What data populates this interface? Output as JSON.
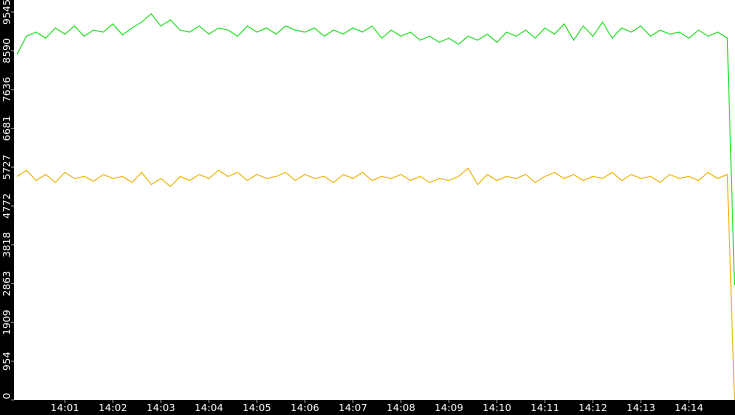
{
  "chart_data": {
    "type": "line",
    "x": [
      0,
      0.2,
      0.4,
      0.6,
      0.8,
      1,
      1.2,
      1.4,
      1.6,
      1.8,
      2,
      2.2,
      2.4,
      2.6,
      2.8,
      3,
      3.2,
      3.4,
      3.6,
      3.8,
      4,
      4.2,
      4.4,
      4.6,
      4.8,
      5,
      5.2,
      5.4,
      5.6,
      5.8,
      6,
      6.2,
      6.4,
      6.6,
      6.8,
      7,
      7.2,
      7.4,
      7.6,
      7.8,
      8,
      8.2,
      8.4,
      8.6,
      8.8,
      9,
      9.2,
      9.4,
      9.6,
      9.8,
      10,
      10.2,
      10.4,
      10.6,
      10.8,
      11,
      11.2,
      11.4,
      11.6,
      11.8,
      12,
      12.2,
      12.4,
      12.6,
      12.8,
      13,
      13.2,
      13.4,
      13.6,
      13.8,
      14,
      14.2,
      14.4,
      14.6,
      14.8,
      14.95
    ],
    "series": [
      {
        "color": "#22dd22",
        "values": [
          8500,
          8950,
          9050,
          8900,
          9150,
          9000,
          9200,
          8950,
          9100,
          9050,
          9250,
          8980,
          9150,
          9300,
          9500,
          9200,
          9350,
          9100,
          9050,
          9200,
          9000,
          9150,
          9100,
          8950,
          9200,
          9050,
          9150,
          9000,
          9200,
          9100,
          9050,
          9150,
          8950,
          9100,
          9000,
          9150,
          9050,
          9200,
          8900,
          9100,
          8950,
          9050,
          8850,
          8950,
          8800,
          8900,
          8750,
          8950,
          8850,
          9000,
          8800,
          9050,
          8950,
          9100,
          8900,
          9150,
          9000,
          9250,
          8850,
          9200,
          8950,
          9300,
          8900,
          9150,
          9050,
          9200,
          8950,
          9100,
          9000,
          9050,
          8900,
          9100,
          8950,
          9050,
          8900,
          2830
        ]
      },
      {
        "color": "#eab30c",
        "values": [
          5500,
          5650,
          5400,
          5550,
          5350,
          5600,
          5450,
          5500,
          5380,
          5550,
          5450,
          5500,
          5350,
          5600,
          5300,
          5450,
          5250,
          5500,
          5400,
          5550,
          5450,
          5650,
          5500,
          5600,
          5400,
          5550,
          5450,
          5500,
          5600,
          5400,
          5550,
          5450,
          5500,
          5350,
          5550,
          5450,
          5600,
          5400,
          5500,
          5450,
          5550,
          5400,
          5500,
          5350,
          5450,
          5400,
          5500,
          5700,
          5300,
          5550,
          5400,
          5500,
          5450,
          5550,
          5350,
          5500,
          5600,
          5450,
          5550,
          5400,
          5500,
          5450,
          5600,
          5400,
          5550,
          5450,
          5500,
          5350,
          5550,
          5450,
          5500,
          5400,
          5600,
          5450,
          5550,
          0
        ]
      }
    ],
    "xlim": [
      -0.06,
      14.96
    ],
    "xticks": [
      {
        "value": 1,
        "label": "14:01"
      },
      {
        "value": 2,
        "label": "14:02"
      },
      {
        "value": 3,
        "label": "14:03"
      },
      {
        "value": 4,
        "label": "14:04"
      },
      {
        "value": 5,
        "label": "14:05"
      },
      {
        "value": 6,
        "label": "14:06"
      },
      {
        "value": 7,
        "label": "14:07"
      },
      {
        "value": 8,
        "label": "14:08"
      },
      {
        "value": 9,
        "label": "14:09"
      },
      {
        "value": 10,
        "label": "14:10"
      },
      {
        "value": 11,
        "label": "14:11"
      },
      {
        "value": 12,
        "label": "14:12"
      },
      {
        "value": 13,
        "label": "14:13"
      },
      {
        "value": 14,
        "label": "14:14"
      }
    ],
    "ylim": [
      0,
      9840
    ],
    "yticks": [
      0,
      954,
      1909,
      2863,
      3818,
      4772,
      5727,
      6681,
      7636,
      8590,
      9545
    ]
  }
}
